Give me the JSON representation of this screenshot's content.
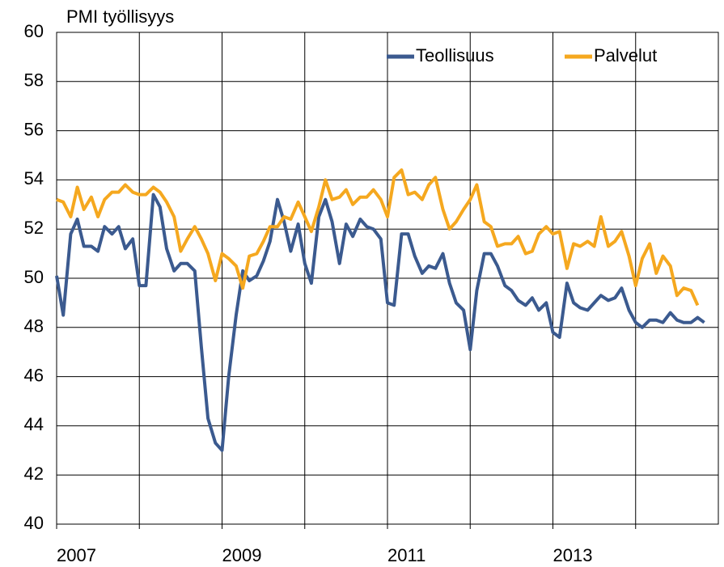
{
  "chart_data": {
    "type": "line",
    "title": "PMI työllisyys",
    "x": [
      2007,
      2007.08,
      2007.17,
      2007.25,
      2007.33,
      2007.42,
      2007.5,
      2007.58,
      2007.67,
      2007.75,
      2007.83,
      2007.92,
      2008,
      2008.08,
      2008.17,
      2008.25,
      2008.33,
      2008.42,
      2008.5,
      2008.58,
      2008.67,
      2008.75,
      2008.83,
      2008.92,
      2009,
      2009.08,
      2009.17,
      2009.25,
      2009.33,
      2009.42,
      2009.5,
      2009.58,
      2009.67,
      2009.75,
      2009.83,
      2009.92,
      2010,
      2010.08,
      2010.17,
      2010.25,
      2010.33,
      2010.42,
      2010.5,
      2010.58,
      2010.67,
      2010.75,
      2010.83,
      2010.92,
      2011,
      2011.08,
      2011.17,
      2011.25,
      2011.33,
      2011.42,
      2011.5,
      2011.58,
      2011.67,
      2011.75,
      2011.83,
      2011.92,
      2012,
      2012.08,
      2012.17,
      2012.25,
      2012.33,
      2012.42,
      2012.5,
      2012.58,
      2012.67,
      2012.75,
      2012.83,
      2012.92,
      2013,
      2013.08,
      2013.17,
      2013.25,
      2013.33,
      2013.42,
      2013.5,
      2013.58,
      2013.67,
      2013.75,
      2013.83,
      2013.92,
      2014,
      2014.08,
      2014.17,
      2014.25,
      2014.33,
      2014.42,
      2014.5,
      2014.58,
      2014.67,
      2014.75,
      2014.83
    ],
    "series": [
      {
        "name": "Teollisuus",
        "color": "#3b5a8f",
        "values": [
          50.1,
          48.5,
          51.8,
          52.4,
          51.3,
          51.3,
          51.1,
          52.1,
          51.8,
          52.1,
          51.2,
          51.6,
          49.7,
          49.7,
          53.4,
          52.9,
          51.2,
          50.3,
          50.6,
          50.6,
          50.3,
          47.2,
          44.3,
          43.3,
          43.0,
          46.0,
          48.5,
          50.3,
          49.9,
          50.1,
          50.7,
          51.5,
          53.2,
          52.3,
          51.1,
          52.2,
          50.6,
          49.8,
          52.5,
          53.2,
          52.3,
          50.6,
          52.2,
          51.7,
          52.4,
          52.1,
          52.0,
          51.6,
          49.0,
          48.9,
          51.8,
          51.8,
          50.9,
          50.2,
          50.5,
          50.4,
          51.0,
          49.8,
          49.0,
          48.7,
          47.1,
          49.5,
          51.0,
          51.0,
          50.5,
          49.7,
          49.5,
          49.1,
          48.9,
          49.2,
          48.7,
          49.0,
          47.8,
          47.6,
          49.8,
          49.0,
          48.8,
          48.7,
          49.0,
          49.3,
          49.1,
          49.2,
          49.6,
          48.7,
          48.2,
          48.0,
          48.3,
          48.3,
          48.2,
          48.6,
          48.3,
          48.2,
          48.2,
          48.4,
          48.2
        ]
      },
      {
        "name": "Palvelut",
        "color": "#f5a81f",
        "values": [
          53.2,
          53.1,
          52.5,
          53.7,
          52.8,
          53.3,
          52.5,
          53.2,
          53.5,
          53.5,
          53.8,
          53.5,
          53.4,
          53.4,
          53.7,
          53.5,
          53.1,
          52.5,
          51.1,
          51.6,
          52.1,
          51.6,
          51.0,
          49.9,
          51.0,
          50.8,
          50.5,
          49.6,
          50.9,
          51.0,
          51.5,
          52.1,
          52.1,
          52.5,
          52.4,
          53.1,
          52.5,
          51.9,
          52.9,
          54.0,
          53.2,
          53.3,
          53.6,
          53.0,
          53.3,
          53.3,
          53.6,
          53.2,
          52.5,
          54.1,
          54.4,
          53.4,
          53.5,
          53.2,
          53.8,
          54.1,
          52.8,
          52.0,
          52.3,
          52.8,
          53.2,
          53.8,
          52.3,
          52.1,
          51.3,
          51.4,
          51.4,
          51.7,
          51.0,
          51.1,
          51.8,
          52.1,
          51.8,
          51.9,
          50.4,
          51.4,
          51.3,
          51.5,
          51.3,
          52.5,
          51.3,
          51.5,
          51.9,
          50.9,
          49.7,
          50.8,
          51.4,
          50.2,
          50.9,
          50.5,
          49.3,
          49.6,
          49.5,
          48.9,
          null
        ]
      }
    ],
    "xlim": [
      2007,
      2015
    ],
    "xticks": [
      2007,
      2009,
      2011,
      2013
    ],
    "xminor": [
      2008,
      2010,
      2012,
      2014
    ],
    "ylim": [
      40,
      60
    ],
    "yticks": [
      40,
      42,
      44,
      46,
      48,
      50,
      52,
      54,
      56,
      58,
      60
    ],
    "grid": true,
    "legend": "top-right"
  }
}
